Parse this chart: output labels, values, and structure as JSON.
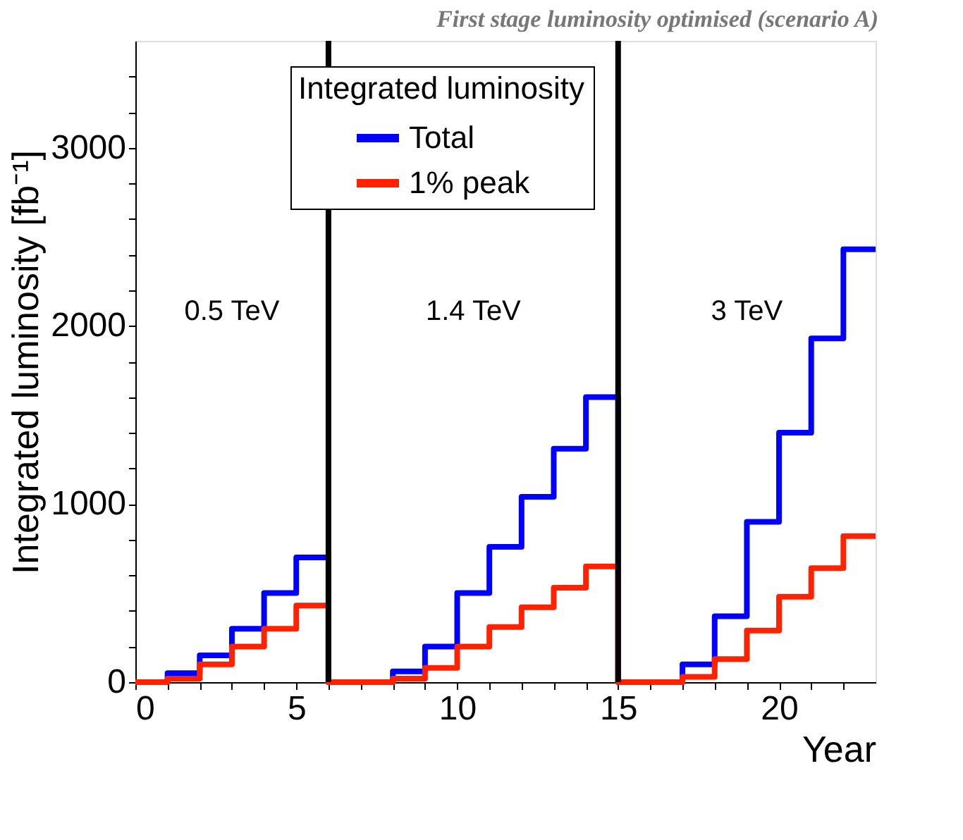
{
  "chart_data": {
    "type": "step",
    "title": "First stage luminosity optimised (scenario A)",
    "xlabel": "Year",
    "ylabel": "Integrated luminosity [fb⁻¹]",
    "legend_title": "Integrated luminosity",
    "legend": "top",
    "grid": false,
    "x": [
      0,
      1,
      2,
      3,
      4,
      5,
      6,
      7,
      8,
      9,
      10,
      11,
      12,
      13,
      14,
      15,
      16,
      17,
      18,
      19,
      20,
      21,
      22,
      23
    ],
    "series": [
      {
        "name": "Total",
        "color": "#0000ff",
        "values": [
          0,
          50,
          150,
          300,
          500,
          700,
          0,
          0,
          60,
          200,
          500,
          760,
          1040,
          1310,
          1600,
          0,
          0,
          100,
          370,
          900,
          1400,
          1930,
          2430,
          2430
        ]
      },
      {
        "name": "1% peak",
        "color": "#ff2200",
        "values": [
          0,
          20,
          100,
          200,
          300,
          430,
          0,
          0,
          20,
          80,
          200,
          310,
          420,
          530,
          650,
          0,
          0,
          30,
          130,
          290,
          480,
          640,
          820,
          820
        ]
      }
    ],
    "xlim": [
      0,
      23
    ],
    "ylim": [
      0,
      3600
    ],
    "xticks": [
      0,
      {
        "value": 1,
        "label": null
      },
      {
        "value": 2,
        "label": null
      },
      {
        "value": 3,
        "label": null
      },
      {
        "value": 4,
        "label": null
      },
      5,
      {
        "value": 6,
        "label": null
      },
      {
        "value": 7,
        "label": null
      },
      {
        "value": 8,
        "label": null
      },
      {
        "value": 9,
        "label": null
      },
      10,
      {
        "value": 11,
        "label": null
      },
      {
        "value": 12,
        "label": null
      },
      {
        "value": 13,
        "label": null
      },
      {
        "value": 14,
        "label": null
      },
      15,
      {
        "value": 16,
        "label": null
      },
      {
        "value": 17,
        "label": null
      },
      {
        "value": 18,
        "label": null
      },
      {
        "value": 19,
        "label": null
      },
      20,
      {
        "value": 21,
        "label": null
      },
      {
        "value": 22,
        "label": null
      }
    ],
    "yticks": [
      0,
      {
        "value": 200,
        "label": null
      },
      {
        "value": 400,
        "label": null
      },
      {
        "value": 600,
        "label": null
      },
      {
        "value": 800,
        "label": null
      },
      1000,
      {
        "value": 1200,
        "label": null
      },
      {
        "value": 1400,
        "label": null
      },
      {
        "value": 1600,
        "label": null
      },
      {
        "value": 1800,
        "label": null
      },
      2000,
      {
        "value": 2200,
        "label": null
      },
      {
        "value": 2400,
        "label": null
      },
      {
        "value": 2600,
        "label": null
      },
      {
        "value": 2800,
        "label": null
      },
      3000,
      {
        "value": 3200,
        "label": null
      },
      {
        "value": 3400,
        "label": null
      }
    ],
    "ref_lines": [
      {
        "axis": "x",
        "value": 6,
        "color": "#000000"
      },
      {
        "axis": "x",
        "value": 15,
        "color": "#000000"
      }
    ],
    "annotations": [
      "0.5 TeV",
      "1.4 TeV",
      "3 TeV"
    ]
  }
}
